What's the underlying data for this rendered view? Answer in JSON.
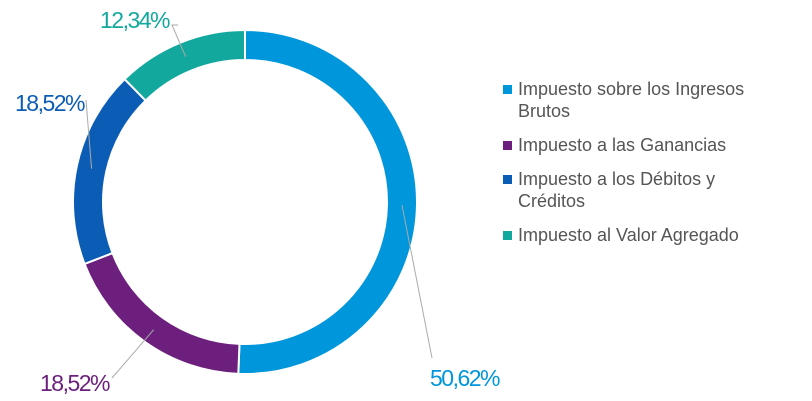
{
  "chart_data": {
    "type": "donut",
    "categories": [
      "Impuesto sobre los Ingresos Brutos",
      "Impuesto a las Ganancias",
      "Impuesto a los Débitos y Créditos",
      "Impuesto al Valor Agregado"
    ],
    "values": [
      50.62,
      18.52,
      18.52,
      12.34
    ],
    "value_labels": [
      "50,62%",
      "18,52%",
      "18,52%",
      "12,34%"
    ],
    "colors": [
      "#0096db",
      "#6c1f7d",
      "#0b5cb5",
      "#13a89e"
    ],
    "legend": "right"
  }
}
